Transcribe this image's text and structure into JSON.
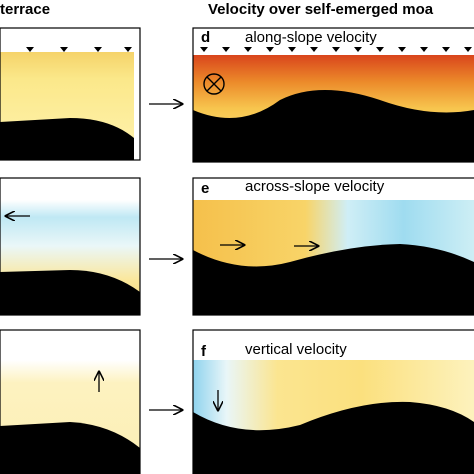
{
  "header": {
    "left_title": "terrace",
    "right_title": "Velocity over self-emerged moa"
  },
  "panels": [
    {
      "label": "d",
      "title": "along-slope velocity"
    },
    {
      "label": "e",
      "title": "across-slope velocity"
    },
    {
      "label": "f",
      "title": "vertical velocity"
    }
  ]
}
